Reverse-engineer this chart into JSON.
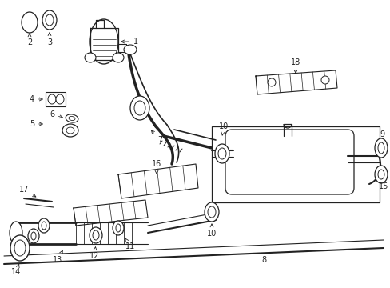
{
  "bg_color": "#ffffff",
  "line_color": "#222222",
  "label_fontsize": 7.0,
  "fig_width": 4.89,
  "fig_height": 3.6,
  "dpi": 100
}
